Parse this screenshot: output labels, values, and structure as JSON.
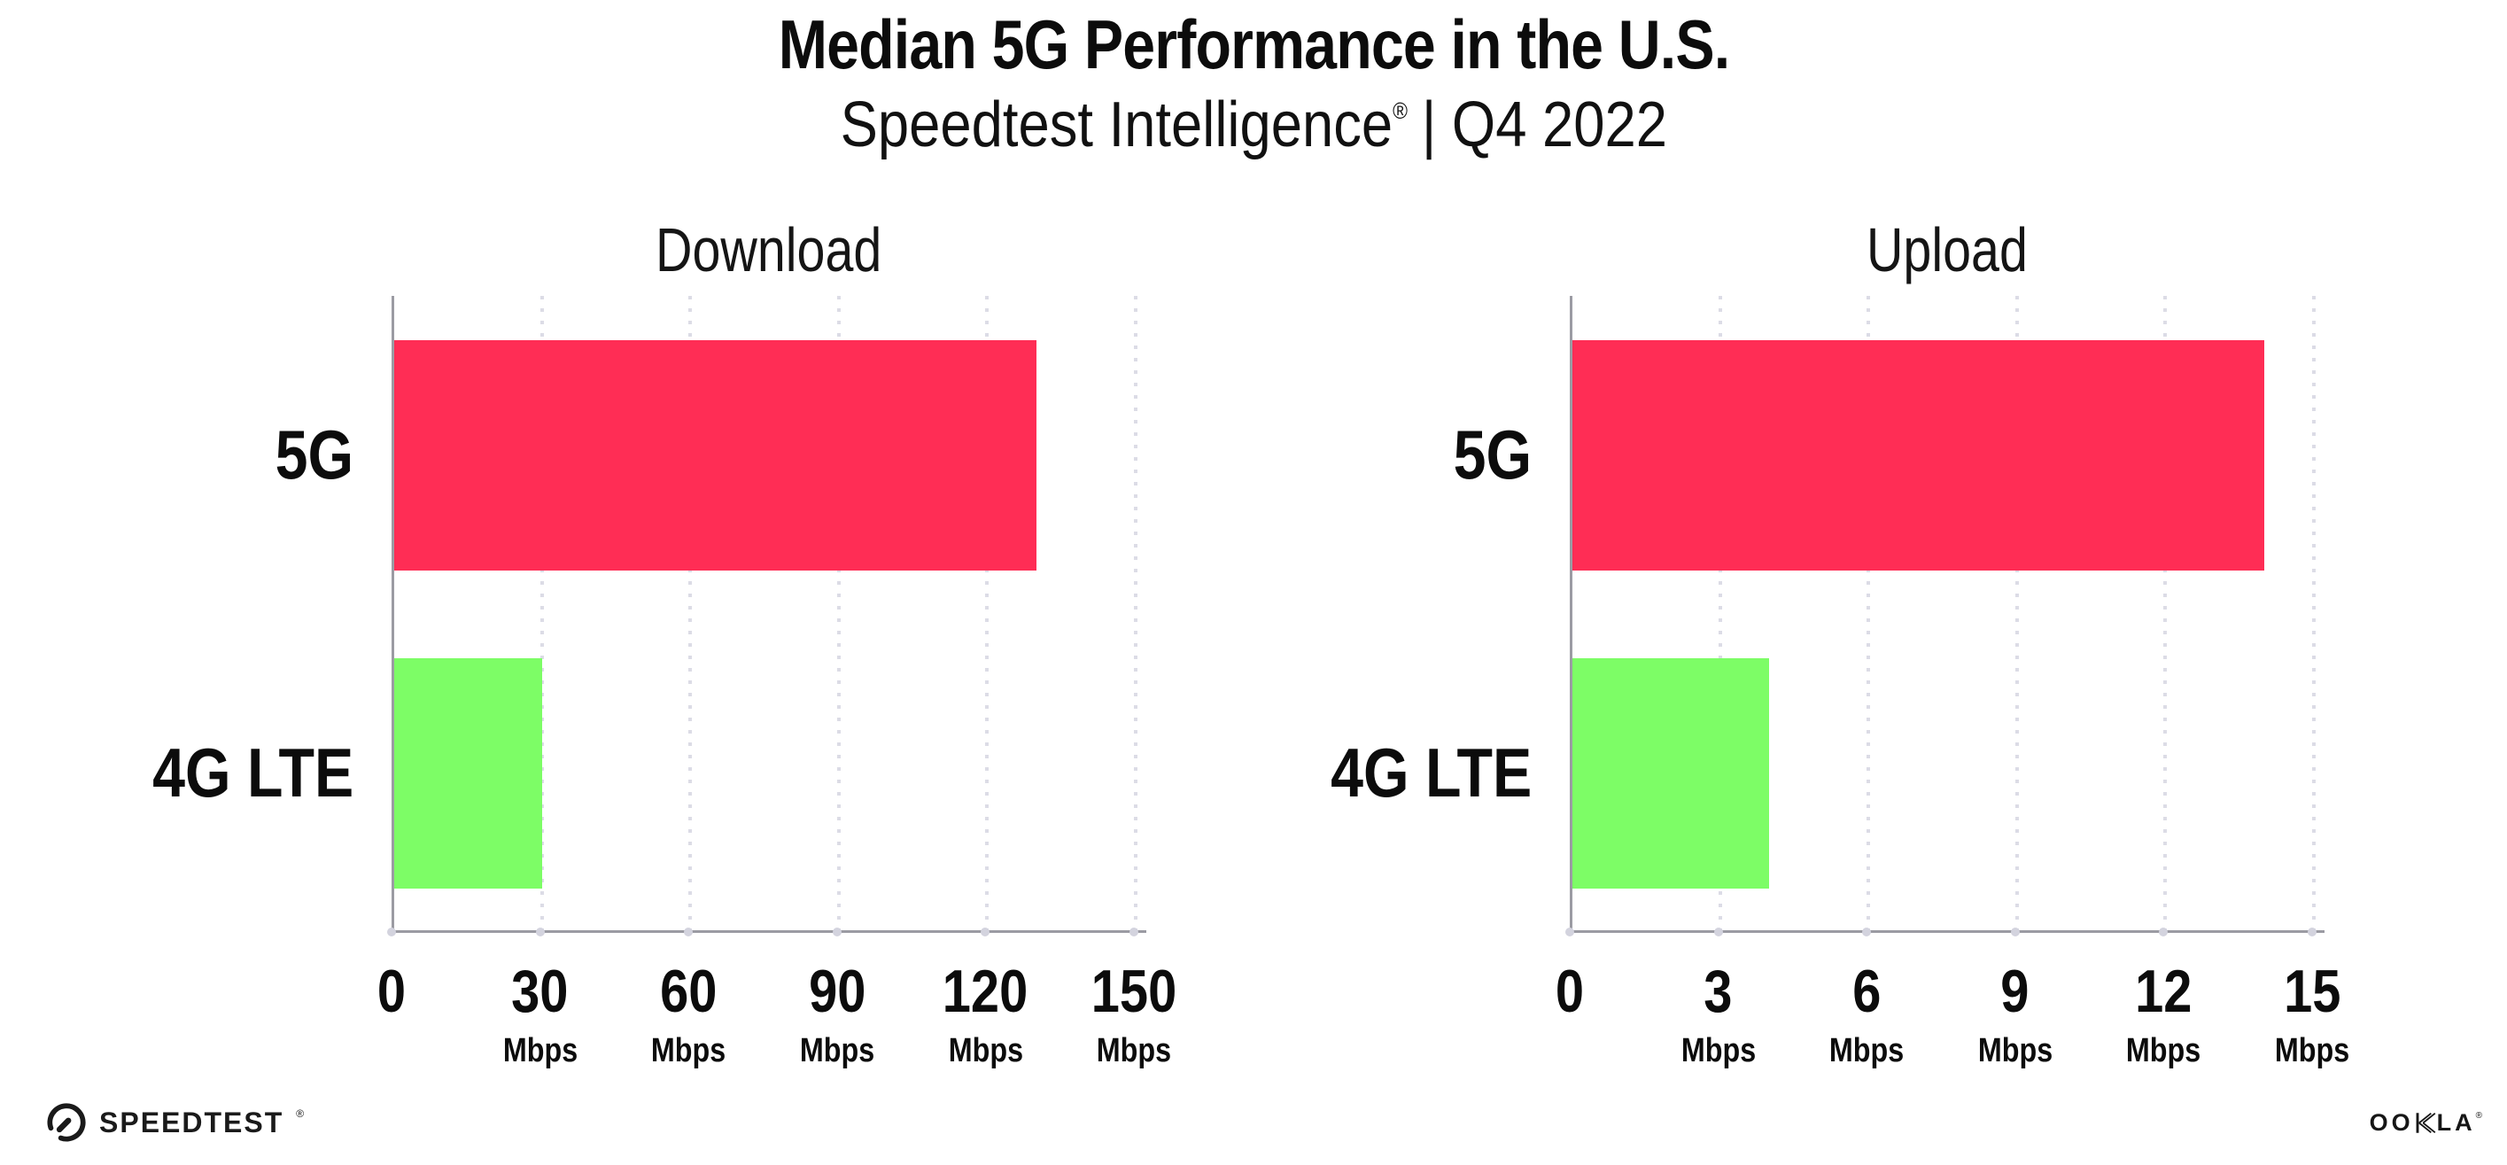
{
  "page_title": "Median 5G Performance in the U.S.",
  "subtitle": {
    "brand": "Speedtest Intelligence",
    "mark": "®",
    "period": "| Q4 2022"
  },
  "chart_data": [
    {
      "type": "bar",
      "orientation": "horizontal",
      "title": "Download",
      "categories": [
        "5G",
        "4G LTE"
      ],
      "values": [
        130,
        30
      ],
      "unit": "Mbps",
      "xlim": [
        0,
        150
      ],
      "xticks": [
        0,
        30,
        60,
        90,
        120,
        150
      ],
      "bar_colors": [
        "#FF2D55",
        "#7DFD66"
      ],
      "grid": "vertical-dotted",
      "legend": "none"
    },
    {
      "type": "bar",
      "orientation": "horizontal",
      "title": "Upload",
      "categories": [
        "5G",
        "4G LTE"
      ],
      "values": [
        14,
        4
      ],
      "unit": "Mbps",
      "xlim": [
        0,
        15
      ],
      "xticks": [
        0,
        3,
        6,
        9,
        12,
        15
      ],
      "bar_colors": [
        "#FF2D55",
        "#7DFD66"
      ],
      "grid": "vertical-dotted",
      "legend": "none"
    }
  ],
  "footer": {
    "speedtest": "SPEEDTEST",
    "speedtest_mark": "®",
    "ookla": "OOKLA",
    "ookla_mark": "®"
  },
  "colors": {
    "bar_5g": "#FF2D55",
    "bar_4g_lte": "#7DFD66",
    "axis": "#9b9ba3",
    "gridline": "#dcdce6",
    "text": "#0c0c0c"
  }
}
